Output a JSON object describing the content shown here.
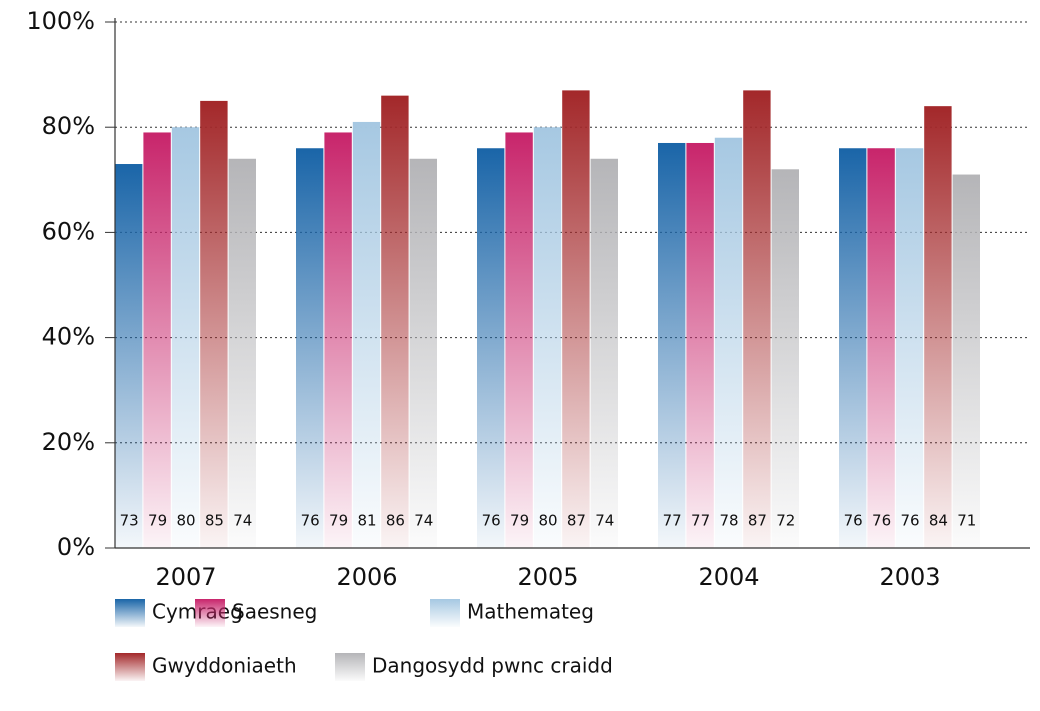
{
  "chart_data": {
    "type": "bar",
    "categories": [
      "2007",
      "2006",
      "2005",
      "2004",
      "2003"
    ],
    "series": [
      {
        "name": "Cymraeg",
        "color": "#1a65a8",
        "values": [
          73,
          76,
          76,
          77,
          76
        ]
      },
      {
        "name": "Saesneg",
        "color": "#c8256b",
        "values": [
          79,
          79,
          79,
          77,
          76
        ]
      },
      {
        "name": "Mathemateg",
        "color": "#a6c8e2",
        "values": [
          80,
          81,
          80,
          78,
          76
        ]
      },
      {
        "name": "Gwyddoniaeth",
        "color": "#a3282a",
        "values": [
          85,
          86,
          87,
          87,
          84
        ]
      },
      {
        "name": "Dangosydd pwnc craidd",
        "color": "#b5b5b8",
        "values": [
          74,
          74,
          74,
          72,
          71
        ]
      }
    ],
    "ylim": [
      0,
      100
    ],
    "yticks": [
      {
        "value": 0,
        "label": "0%"
      },
      {
        "value": 20,
        "label": "20%"
      },
      {
        "value": 40,
        "label": "40%"
      },
      {
        "value": 60,
        "label": "60%"
      },
      {
        "value": 80,
        "label": "80%"
      },
      {
        "value": 100,
        "label": "100%"
      }
    ],
    "grid": true
  }
}
